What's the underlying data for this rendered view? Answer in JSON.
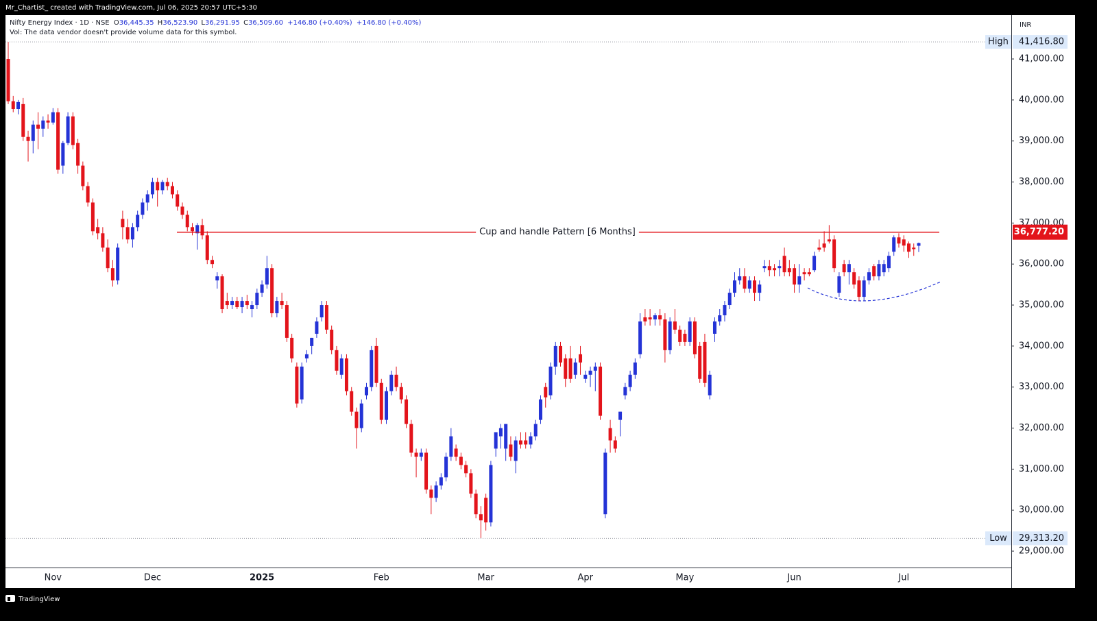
{
  "header": {
    "credit": "Mr_Chartist_ created with TradingView.com, Jul 06, 2025 20:57 UTC+5:30"
  },
  "footer": {
    "brand": "TradingView"
  },
  "chart_data": {
    "type": "candlestick",
    "symbol": "Nifty Energy Index · 1D · NSE",
    "ohlc_legend": [
      {
        "key": "O",
        "value": "36,445.35"
      },
      {
        "key": "H",
        "value": "36,523.90"
      },
      {
        "key": "L",
        "value": "36,291.95"
      },
      {
        "key": "C",
        "value": "36,509.60"
      }
    ],
    "changes": [
      "+146.80 (+0.40%)",
      "+146.80 (+0.40%)"
    ],
    "volume_note": "Vol: The data vendor doesn't provide volume data for this symbol.",
    "currency": "INR",
    "up_color": "#2433d6",
    "down_color": "#e3141b",
    "categories": [
      null,
      null,
      null,
      null,
      null,
      null,
      null,
      null,
      null,
      "Nov",
      null,
      null,
      null,
      null,
      null,
      null,
      null,
      null,
      null,
      null,
      null,
      null,
      null,
      null,
      null,
      null,
      null,
      null,
      null,
      "Dec",
      null,
      null,
      null,
      null,
      null,
      null,
      null,
      null,
      null,
      null,
      null,
      null,
      null,
      null,
      null,
      null,
      null,
      null,
      null,
      null,
      null,
      "2025",
      null,
      null,
      null,
      null,
      null,
      null,
      null,
      null,
      null,
      null,
      null,
      null,
      null,
      null,
      null,
      null,
      null,
      null,
      null,
      null,
      null,
      null,
      null,
      "Feb",
      null,
      null,
      null,
      null,
      null,
      null,
      null,
      null,
      null,
      null,
      null,
      null,
      null,
      null,
      null,
      null,
      null,
      null,
      null,
      null,
      "Mar",
      null,
      null,
      null,
      null,
      null,
      null,
      null,
      null,
      null,
      null,
      null,
      null,
      null,
      null,
      null,
      null,
      null,
      null,
      null,
      "Apr",
      null,
      null,
      null,
      null,
      null,
      null,
      null,
      null,
      null,
      null,
      null,
      null,
      null,
      null,
      null,
      null,
      null,
      null,
      null,
      "May",
      null,
      null,
      null,
      null,
      null,
      null,
      null,
      null,
      null,
      null,
      null,
      null,
      null,
      null,
      null,
      null,
      null,
      null,
      null,
      null,
      null,
      "Jun",
      null,
      null,
      null,
      null,
      null,
      null,
      null,
      null,
      null,
      null,
      null,
      null,
      null,
      null,
      null,
      null,
      null,
      null,
      null,
      null,
      null,
      "Jul",
      null,
      null,
      null
    ],
    "open": [
      41000,
      39970,
      39780,
      39900,
      39100,
      39000,
      39400,
      39300,
      39500,
      39450,
      39700,
      38400,
      38950,
      39600,
      38950,
      38400,
      37900,
      37500,
      36900,
      36750,
      36400,
      35900,
      35600,
      37100,
      36900,
      36600,
      36900,
      37200,
      37500,
      37700,
      38000,
      37800,
      38000,
      37900,
      37700,
      37400,
      37200,
      36900,
      36750,
      36950,
      36700,
      36100,
      35600,
      35700,
      35100,
      35000,
      35100,
      34950,
      35100,
      34900,
      35000,
      35300,
      35500,
      35900,
      34800,
      35100,
      35000,
      34200,
      33500,
      32700,
      33700,
      34000,
      34300,
      34700,
      35000,
      34400,
      33900,
      33300,
      33700,
      32900,
      32400,
      32000,
      32800,
      33000,
      34000,
      33100,
      32200,
      32900,
      33300,
      33000,
      32700,
      32100,
      31400,
      31300,
      31400,
      30500,
      30300,
      30600,
      30800,
      31300,
      31500,
      31300,
      31100,
      30900,
      30400,
      29900,
      30300,
      29700,
      31500,
      31800,
      31500,
      31600,
      31200,
      31700,
      31700,
      31600,
      31800,
      32200,
      33000,
      32800,
      33500,
      34000,
      33700,
      33700,
      33300,
      33800,
      33200,
      33300,
      33400,
      33500,
      29900,
      32000,
      31700,
      32200,
      32800,
      33000,
      33300,
      33800,
      34700,
      34700,
      34650,
      34750,
      34650,
      33900,
      34600,
      34400,
      34300,
      34100,
      34600,
      34000,
      34100,
      32800,
      34300,
      34600,
      34750,
      35000,
      35300,
      35600,
      35700,
      35400,
      35600,
      35300,
      35900,
      35950,
      35900,
      35900,
      36200,
      35900,
      35900,
      35500,
      35800,
      35800,
      35850,
      36400,
      36500,
      36600,
      36600,
      35300,
      36000,
      35800,
      35800,
      35600,
      35200,
      35600,
      35950,
      35700,
      35800,
      35900,
      36300,
      36650,
      36600,
      36500,
      36400,
      36445.35
    ],
    "high": [
      41416.8,
      40100,
      40000,
      40050,
      39250,
      39500,
      39700,
      39600,
      39650,
      39800,
      39800,
      39000,
      39700,
      39700,
      39050,
      38500,
      38000,
      37600,
      37100,
      36900,
      36600,
      36100,
      36500,
      37300,
      37100,
      37000,
      37300,
      37600,
      37800,
      38100,
      38100,
      38050,
      38100,
      38000,
      37800,
      37500,
      37300,
      37000,
      37000,
      37100,
      36800,
      36200,
      35800,
      35750,
      35300,
      35200,
      35200,
      35200,
      35250,
      35100,
      35400,
      35600,
      36200,
      36000,
      35200,
      35300,
      35100,
      34300,
      33600,
      33600,
      33900,
      34200,
      34700,
      35100,
      35100,
      34500,
      34000,
      33800,
      33800,
      33000,
      32500,
      32700,
      33100,
      34000,
      34200,
      33200,
      33000,
      33400,
      33500,
      33100,
      32800,
      32200,
      31500,
      31500,
      31500,
      30600,
      30700,
      30900,
      31400,
      32000,
      31600,
      31400,
      31200,
      31000,
      30500,
      30100,
      30400,
      31200,
      31900,
      32100,
      32100,
      31800,
      31800,
      31900,
      31900,
      31900,
      32200,
      32800,
      33100,
      33600,
      34100,
      34100,
      33800,
      34000,
      33700,
      34000,
      33400,
      33500,
      33600,
      33600,
      31500,
      32200,
      31800,
      32400,
      33100,
      33400,
      33700,
      34800,
      34900,
      34900,
      34800,
      34900,
      34800,
      34700,
      34900,
      34500,
      34400,
      34700,
      34700,
      34100,
      34300,
      33400,
      34700,
      34900,
      35100,
      35400,
      35800,
      35900,
      35900,
      35700,
      35700,
      35600,
      36100,
      36100,
      36000,
      36100,
      36400,
      36100,
      36000,
      36000,
      35900,
      35900,
      36300,
      36600,
      36800,
      36950,
      36700,
      35800,
      36100,
      36100,
      35900,
      35700,
      35700,
      35900,
      36000,
      36100,
      36100,
      36300,
      36700,
      36750,
      36700,
      36550,
      36500,
      36523.9
    ],
    "low": [
      39900,
      39700,
      39650,
      39000,
      38500,
      38700,
      38800,
      39100,
      39300,
      39400,
      38200,
      38200,
      38900,
      38800,
      38200,
      37800,
      37400,
      36700,
      36600,
      36300,
      35800,
      35450,
      35500,
      36600,
      36500,
      36400,
      36800,
      37100,
      37300,
      37600,
      37400,
      37700,
      37800,
      37600,
      37300,
      37100,
      36800,
      36700,
      36350,
      36600,
      36000,
      35900,
      35400,
      34800,
      34900,
      34900,
      34900,
      34800,
      34900,
      34700,
      34900,
      35200,
      35400,
      34700,
      34700,
      34900,
      34100,
      33600,
      32500,
      32600,
      33600,
      33800,
      34200,
      34600,
      34300,
      33800,
      33300,
      33200,
      32800,
      32300,
      31500,
      31900,
      32700,
      32900,
      33000,
      32100,
      32100,
      32800,
      32900,
      32600,
      32000,
      31300,
      30800,
      31200,
      30400,
      29900,
      30200,
      30500,
      30700,
      31200,
      31200,
      31000,
      30800,
      30300,
      29800,
      29313.2,
      29500,
      29600,
      31300,
      31500,
      31200,
      31200,
      30900,
      31500,
      31500,
      31500,
      31700,
      32100,
      32500,
      32700,
      33300,
      33500,
      33000,
      33100,
      33200,
      33300,
      33100,
      33000,
      32900,
      32200,
      29800,
      31400,
      31400,
      31800,
      32700,
      32900,
      33200,
      33700,
      34500,
      34500,
      34500,
      34500,
      33600,
      33800,
      34300,
      34000,
      34000,
      34000,
      33700,
      33100,
      33000,
      32700,
      34100,
      34500,
      34600,
      34900,
      35200,
      35500,
      35300,
      35300,
      35100,
      35100,
      35800,
      35700,
      35700,
      35700,
      35700,
      35700,
      35300,
      35300,
      35600,
      35700,
      35800,
      36300,
      36300,
      36500,
      35800,
      35200,
      35700,
      35500,
      35400,
      35100,
      35100,
      35500,
      35600,
      35600,
      35700,
      35800,
      36200,
      36400,
      36300,
      36150,
      36200,
      36291.95
    ],
    "close": [
      39970,
      39780,
      39950,
      39100,
      39000,
      39400,
      39300,
      39500,
      39450,
      39700,
      38300,
      38950,
      39600,
      38900,
      38400,
      37900,
      37500,
      36800,
      36750,
      36400,
      35900,
      35600,
      36400,
      36900,
      36600,
      36900,
      37200,
      37500,
      37700,
      38000,
      37800,
      38000,
      37900,
      37700,
      37400,
      37200,
      36900,
      36800,
      36950,
      36700,
      36100,
      36000,
      35700,
      34900,
      35000,
      35100,
      34950,
      35100,
      35000,
      35000,
      35300,
      35500,
      35900,
      34800,
      35100,
      35000,
      34200,
      33700,
      32600,
      33500,
      33800,
      34200,
      34600,
      35000,
      34400,
      33900,
      33400,
      33700,
      32900,
      32400,
      32000,
      32600,
      33000,
      33900,
      33100,
      32200,
      32900,
      33300,
      33000,
      32700,
      32100,
      31400,
      31300,
      31400,
      30500,
      30300,
      30600,
      30800,
      31300,
      31800,
      31300,
      31100,
      30900,
      30400,
      29900,
      29750,
      29700,
      31100,
      31900,
      32000,
      32100,
      31300,
      31700,
      31600,
      31600,
      31800,
      32100,
      32700,
      32750,
      33500,
      34000,
      33600,
      33200,
      33200,
      33600,
      33600,
      33300,
      33400,
      33500,
      32300,
      31400,
      31700,
      31500,
      32400,
      33000,
      33300,
      33600,
      34600,
      34600,
      34650,
      34750,
      34650,
      33900,
      34600,
      34400,
      34100,
      34100,
      34600,
      33800,
      33200,
      33100,
      33300,
      34600,
      34750,
      35000,
      35300,
      35600,
      35700,
      35400,
      35600,
      35300,
      35500,
      35950,
      35850,
      35850,
      35950,
      35800,
      35800,
      35500,
      35700,
      35750,
      35750,
      36200,
      36350,
      36400,
      36550,
      35900,
      35700,
      35800,
      36000,
      35500,
      35200,
      35600,
      35800,
      35700,
      36000,
      36000,
      36200,
      36650,
      36500,
      36450,
      36300,
      36362.8,
      36509.6
    ],
    "ylim": [
      28600,
      42070
    ],
    "yticks": [
      {
        "value": 29000,
        "label": "29,000.00"
      },
      {
        "value": 30000,
        "label": "30,000.00"
      },
      {
        "value": 31000,
        "label": "31,000.00"
      },
      {
        "value": 32000,
        "label": "32,000.00"
      },
      {
        "value": 33000,
        "label": "33,000.00"
      },
      {
        "value": 34000,
        "label": "34,000.00"
      },
      {
        "value": 35000,
        "label": "35,000.00"
      },
      {
        "value": 36000,
        "label": "36,000.00"
      },
      {
        "value": 37000,
        "label": "37,000.00"
      },
      {
        "value": 38000,
        "label": "38,000.00"
      },
      {
        "value": 39000,
        "label": "39,000.00"
      },
      {
        "value": 40000,
        "label": "40,000.00"
      },
      {
        "value": 41000,
        "label": "41,000.00"
      }
    ],
    "high_marker": {
      "label": "High",
      "value": 41416.8,
      "value_label": "41,416.80"
    },
    "low_marker": {
      "label": "Low",
      "value": 29313.2,
      "value_label": "29,313.20"
    },
    "pattern_line": {
      "text": "Cup and handle Pattern [6 Months]",
      "value": 36777.2,
      "value_label": "36,777.20",
      "color": "#e3141b"
    }
  }
}
